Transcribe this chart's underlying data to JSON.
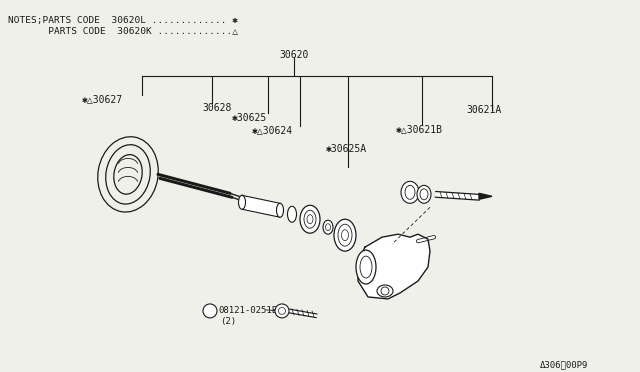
{
  "bg_color": "#f0f0eb",
  "line_color": "#1a1a1a",
  "notes_line1": "NOTES;PARTS CODE  30620L .............",
  "notes_sym1": "✱",
  "notes_line2": "       PARTS CODE  30620K .............",
  "notes_sym2": "△",
  "label_30620": "30620",
  "label_30627": "✱△30627",
  "label_30628": "30628",
  "label_30625": "✱30625",
  "label_30624": "✱△30624",
  "label_30625A": "✱30625A",
  "label_30621A": "30621A",
  "label_30621B": "✱△30621B",
  "label_bolt_circle": "B",
  "label_bolt": "08121-0251E",
  "label_bolt2": "(2)",
  "watermark": "Δ306⁂00P9",
  "label_fontsize": 7,
  "watermark_fontsize": 6.5
}
